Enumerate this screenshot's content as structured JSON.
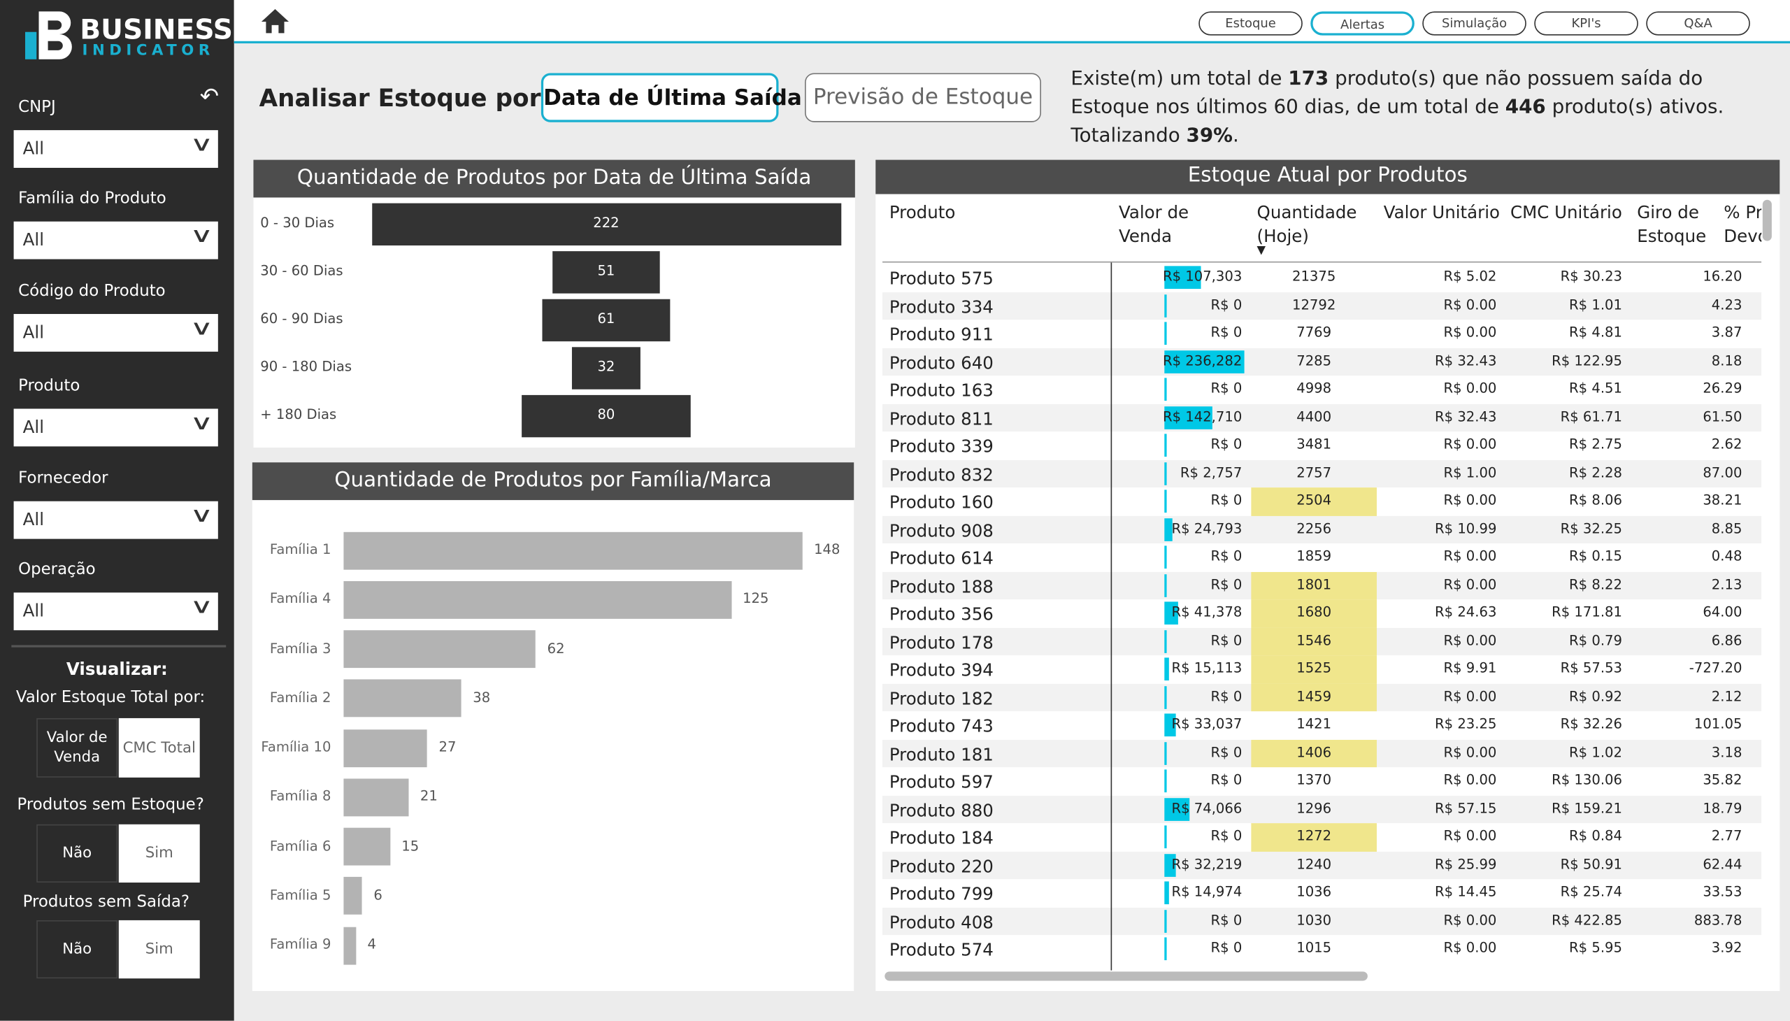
{
  "logo": {
    "title": "BUSINESS",
    "subtitle": "INDICATOR"
  },
  "nav": [
    {
      "label": "Estoque",
      "active": false
    },
    {
      "label": "Alertas",
      "active": true
    },
    {
      "label": "Simulação",
      "active": false
    },
    {
      "label": "KPI's",
      "active": false
    },
    {
      "label": "Q&A",
      "active": false
    }
  ],
  "filters": [
    {
      "label": "CNPJ",
      "value": "All"
    },
    {
      "label": "Família do Produto",
      "value": "All"
    },
    {
      "label": "Código do Produto",
      "value": "All"
    },
    {
      "label": "Produto",
      "value": "All"
    },
    {
      "label": "Fornecedor",
      "value": "All"
    },
    {
      "label": "Operação",
      "value": "All"
    }
  ],
  "visualize": {
    "title": "Visualizar:",
    "subtitle": "Valor Estoque Total por:",
    "options": [
      {
        "label": "Valor de Venda",
        "selected": true
      },
      {
        "label": "CMC Total",
        "selected": false
      }
    ]
  },
  "toggles": [
    {
      "label": "Produtos sem Estoque?",
      "options": [
        {
          "label": "Não",
          "selected": true
        },
        {
          "label": "Sim",
          "selected": false
        }
      ]
    },
    {
      "label": "Produtos sem Saída?",
      "options": [
        {
          "label": "Não",
          "selected": true
        },
        {
          "label": "Sim",
          "selected": false
        }
      ]
    }
  ],
  "header": {
    "label": "Analisar Estoque por:",
    "buttons": [
      {
        "label": "Data de Última Saída",
        "selected": true
      },
      {
        "label": "Previsão de Estoque",
        "selected": false
      }
    ]
  },
  "summary": {
    "text_1": "Existe(m) um total de",
    "count": "173",
    "text_2": "produto(s) que não possuem saída do Estoque nos últimos 60 dias, de um total de",
    "total": "446",
    "text_3": "produto(s) ativos. Totalizando",
    "percent": "39%",
    "text_4": "."
  },
  "funnel": {
    "title": "Quantidade de Produtos por Data de Última Saída",
    "categories": [
      "0 - 30 Dias",
      "30 - 60 Dias",
      "60 - 90 Dias",
      "90 - 180 Dias",
      "+ 180 Dias"
    ],
    "values": [
      222,
      51,
      61,
      32,
      80
    ],
    "color": "#333333"
  },
  "family": {
    "title": "Quantidade de Produtos por Família/Marca",
    "categories": [
      "Família 1",
      "Família 4",
      "Família 3",
      "Família 2",
      "Família 10",
      "Família 8",
      "Família 6",
      "Família 5",
      "Família 9"
    ],
    "values": [
      148,
      125,
      62,
      38,
      27,
      21,
      15,
      6,
      4
    ],
    "color": "#b3b3b3"
  },
  "table": {
    "title": "Estoque Atual por Produtos",
    "columns": [
      "Produto",
      "Valor de Venda",
      "Quantidade (Hoje)",
      "Valor Unitário",
      "CMC Unitário",
      "Giro de Estoque",
      "% Pr Devo"
    ],
    "bar_color": "#00c8e6",
    "highlight_color": "#f0e68c",
    "rows": [
      {
        "product": "Produto 575",
        "sales": 107303,
        "sales_label": "R$ 107,303",
        "qty": 21375,
        "unit": "R$ 5.02",
        "cmc": "R$ 30.23",
        "giro": "16.20",
        "highlight": false
      },
      {
        "product": "Produto 334",
        "sales": 0,
        "sales_label": "R$ 0",
        "qty": 12792,
        "unit": "R$ 0.00",
        "cmc": "R$ 1.01",
        "giro": "4.23",
        "highlight": false
      },
      {
        "product": "Produto 911",
        "sales": 0,
        "sales_label": "R$ 0",
        "qty": 7769,
        "unit": "R$ 0.00",
        "cmc": "R$ 4.81",
        "giro": "3.87",
        "highlight": false
      },
      {
        "product": "Produto 640",
        "sales": 236282,
        "sales_label": "R$ 236,282",
        "qty": 7285,
        "unit": "R$ 32.43",
        "cmc": "R$ 122.95",
        "giro": "8.18",
        "highlight": false
      },
      {
        "product": "Produto 163",
        "sales": 0,
        "sales_label": "R$ 0",
        "qty": 4998,
        "unit": "R$ 0.00",
        "cmc": "R$ 4.51",
        "giro": "26.29",
        "highlight": false
      },
      {
        "product": "Produto 811",
        "sales": 142710,
        "sales_label": "R$ 142,710",
        "qty": 4400,
        "unit": "R$ 32.43",
        "cmc": "R$ 61.71",
        "giro": "61.50",
        "highlight": false
      },
      {
        "product": "Produto 339",
        "sales": 0,
        "sales_label": "R$ 0",
        "qty": 3481,
        "unit": "R$ 0.00",
        "cmc": "R$ 2.75",
        "giro": "2.62",
        "highlight": false
      },
      {
        "product": "Produto 832",
        "sales": 2757,
        "sales_label": "R$ 2,757",
        "qty": 2757,
        "unit": "R$ 1.00",
        "cmc": "R$ 2.28",
        "giro": "87.00",
        "highlight": false
      },
      {
        "product": "Produto 160",
        "sales": 0,
        "sales_label": "R$ 0",
        "qty": 2504,
        "unit": "R$ 0.00",
        "cmc": "R$ 8.06",
        "giro": "38.21",
        "highlight": true
      },
      {
        "product": "Produto 908",
        "sales": 24793,
        "sales_label": "R$ 24,793",
        "qty": 2256,
        "unit": "R$ 10.99",
        "cmc": "R$ 32.25",
        "giro": "8.85",
        "highlight": false
      },
      {
        "product": "Produto 614",
        "sales": 0,
        "sales_label": "R$ 0",
        "qty": 1859,
        "unit": "R$ 0.00",
        "cmc": "R$ 0.15",
        "giro": "0.48",
        "highlight": false
      },
      {
        "product": "Produto 188",
        "sales": 0,
        "sales_label": "R$ 0",
        "qty": 1801,
        "unit": "R$ 0.00",
        "cmc": "R$ 8.22",
        "giro": "2.13",
        "highlight": true
      },
      {
        "product": "Produto 356",
        "sales": 41378,
        "sales_label": "R$ 41,378",
        "qty": 1680,
        "unit": "R$ 24.63",
        "cmc": "R$ 171.81",
        "giro": "64.00",
        "highlight": true
      },
      {
        "product": "Produto 178",
        "sales": 0,
        "sales_label": "R$ 0",
        "qty": 1546,
        "unit": "R$ 0.00",
        "cmc": "R$ 0.79",
        "giro": "6.86",
        "highlight": true
      },
      {
        "product": "Produto 394",
        "sales": 15113,
        "sales_label": "R$ 15,113",
        "qty": 1525,
        "unit": "R$ 9.91",
        "cmc": "R$ 57.53",
        "giro": "-727.20",
        "highlight": true
      },
      {
        "product": "Produto 182",
        "sales": 0,
        "sales_label": "R$ 0",
        "qty": 1459,
        "unit": "R$ 0.00",
        "cmc": "R$ 0.92",
        "giro": "2.12",
        "highlight": true
      },
      {
        "product": "Produto 743",
        "sales": 33037,
        "sales_label": "R$ 33,037",
        "qty": 1421,
        "unit": "R$ 23.25",
        "cmc": "R$ 32.26",
        "giro": "101.05",
        "highlight": false
      },
      {
        "product": "Produto 181",
        "sales": 0,
        "sales_label": "R$ 0",
        "qty": 1406,
        "unit": "R$ 0.00",
        "cmc": "R$ 1.02",
        "giro": "3.18",
        "highlight": true
      },
      {
        "product": "Produto 597",
        "sales": 0,
        "sales_label": "R$ 0",
        "qty": 1370,
        "unit": "R$ 0.00",
        "cmc": "R$ 130.06",
        "giro": "35.82",
        "highlight": false
      },
      {
        "product": "Produto 880",
        "sales": 74066,
        "sales_label": "R$ 74,066",
        "qty": 1296,
        "unit": "R$ 57.15",
        "cmc": "R$ 159.21",
        "giro": "18.79",
        "highlight": false
      },
      {
        "product": "Produto 184",
        "sales": 0,
        "sales_label": "R$ 0",
        "qty": 1272,
        "unit": "R$ 0.00",
        "cmc": "R$ 0.84",
        "giro": "2.77",
        "highlight": true
      },
      {
        "product": "Produto 220",
        "sales": 32219,
        "sales_label": "R$ 32,219",
        "qty": 1240,
        "unit": "R$ 25.99",
        "cmc": "R$ 50.91",
        "giro": "62.44",
        "highlight": false
      },
      {
        "product": "Produto 799",
        "sales": 14974,
        "sales_label": "R$ 14,974",
        "qty": 1036,
        "unit": "R$ 14.45",
        "cmc": "R$ 25.74",
        "giro": "33.53",
        "highlight": false
      },
      {
        "product": "Produto 408",
        "sales": 0,
        "sales_label": "R$ 0",
        "qty": 1030,
        "unit": "R$ 0.00",
        "cmc": "R$ 422.85",
        "giro": "883.78",
        "highlight": false
      },
      {
        "product": "Produto 574",
        "sales": 0,
        "sales_label": "R$ 0",
        "qty": 1015,
        "unit": "R$ 0.00",
        "cmc": "R$ 5.95",
        "giro": "3.92",
        "highlight": false
      }
    ]
  }
}
